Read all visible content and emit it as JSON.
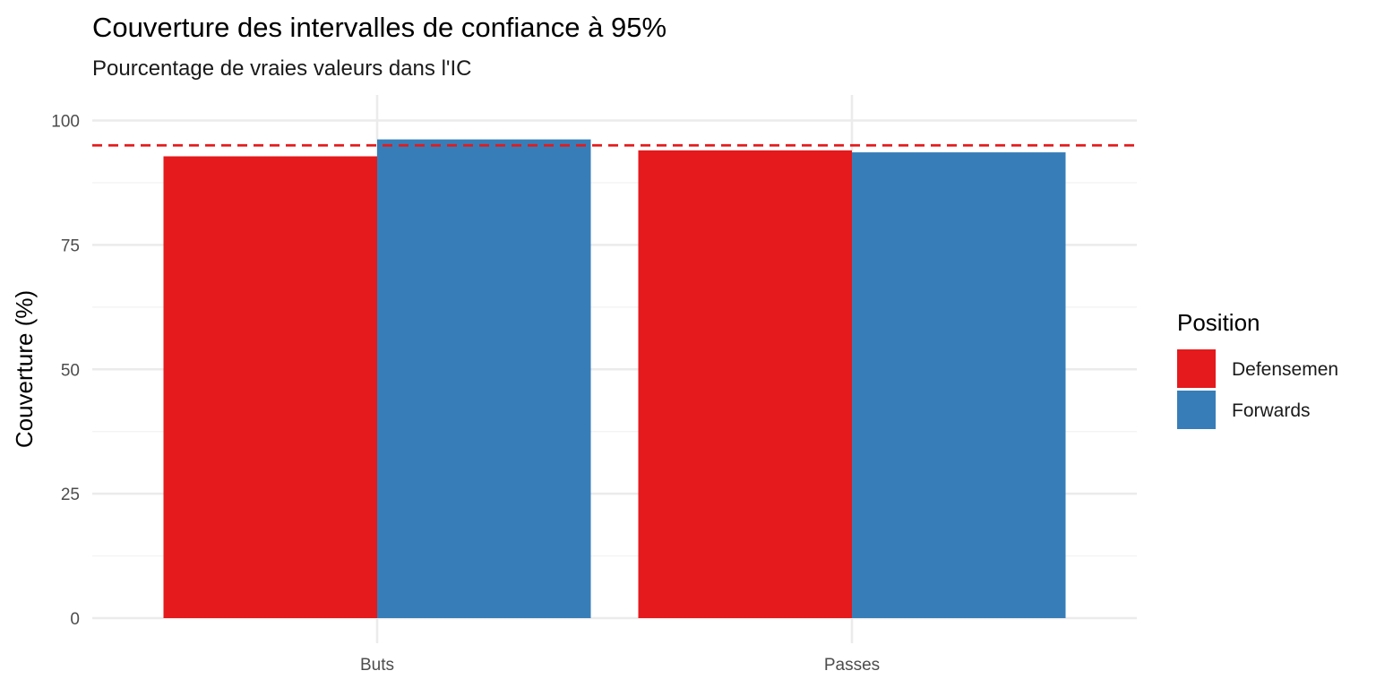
{
  "chart_data": {
    "type": "bar",
    "title": "Couverture des intervalles de confiance à 95%",
    "subtitle": "Pourcentage de vraies valeurs dans l'IC",
    "xlabel": "",
    "ylabel": "Couverture (%)",
    "categories": [
      "Buts",
      "Passes"
    ],
    "series": [
      {
        "name": "Defensemen",
        "color": "#E41A1C",
        "values": [
          92.8,
          94.0
        ]
      },
      {
        "name": "Forwards",
        "color": "#377EB8",
        "values": [
          96.2,
          93.6
        ]
      }
    ],
    "ylim": [
      0,
      100
    ],
    "yticks": [
      0,
      25,
      50,
      75,
      100
    ],
    "reference_line": {
      "value": 95,
      "color": "#E41A1C",
      "style": "dashed"
    },
    "legend_title": "Position",
    "legend_position": "right",
    "grid": true
  }
}
